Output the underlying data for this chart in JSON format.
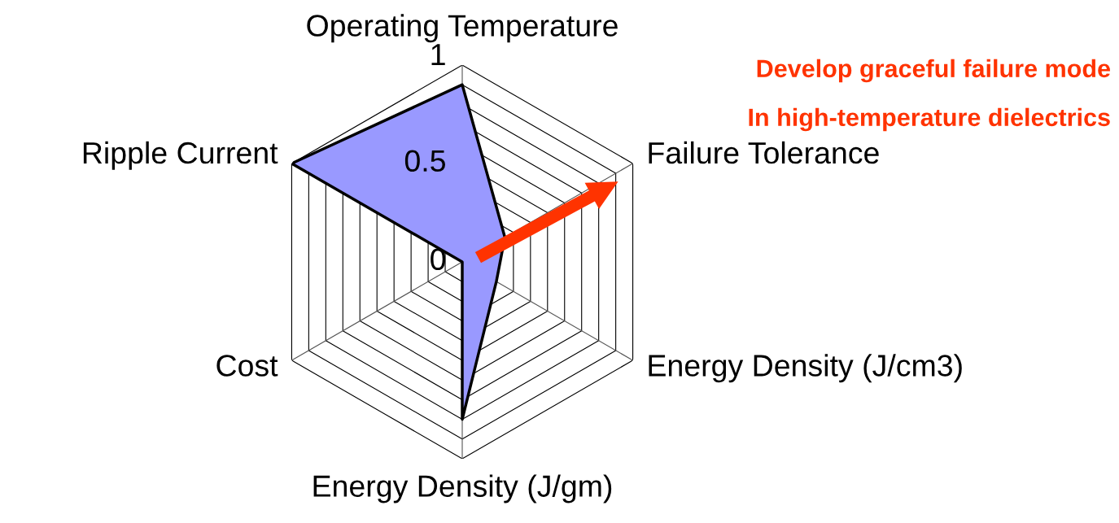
{
  "chart_data": {
    "type": "radar",
    "categories": [
      "Operating Temperature",
      "Failure Tolerance",
      "Energy Density (J/cm3)",
      "Energy Density (J/gm)",
      "Cost",
      "Ripple Current"
    ],
    "series": [
      {
        "color": "#9999ff",
        "values": [
          0.9,
          0.25,
          0.2,
          0.8,
          0,
          1
        ]
      }
    ],
    "ylim": [
      0,
      1
    ],
    "yticks": [
      0,
      0.5,
      1
    ],
    "grid": true,
    "annotations": [
      "Develop graceful failure mode",
      "In high-temperature dielectrics"
    ]
  }
}
